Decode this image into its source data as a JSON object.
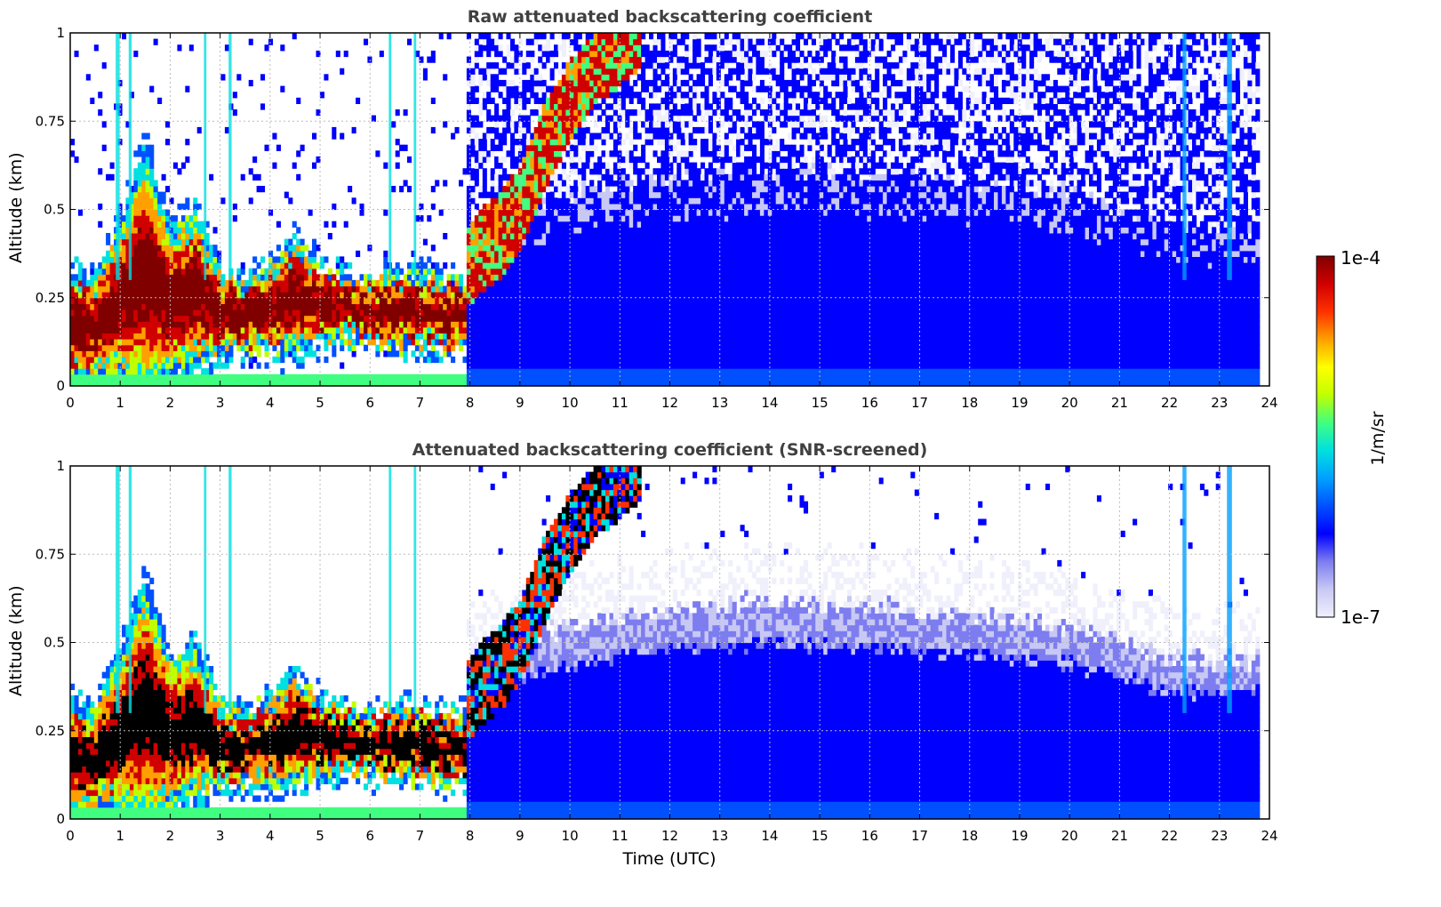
{
  "chart_data": [
    {
      "type": "heatmap",
      "title": "Raw attenuated backscattering coefficient",
      "xlabel": "",
      "ylabel": "Altitude (km)",
      "xlim": [
        0,
        24
      ],
      "ylim": [
        0,
        1
      ],
      "xticks": [
        "0",
        "1",
        "2",
        "3",
        "4",
        "5",
        "6",
        "7",
        "8",
        "9",
        "10",
        "11",
        "12",
        "13",
        "14",
        "15",
        "16",
        "17",
        "18",
        "19",
        "20",
        "21",
        "22",
        "23",
        "24"
      ],
      "yticks": [
        "0",
        "0.25",
        "0.5",
        "0.75",
        "1"
      ],
      "grid": true,
      "data_end_time": 23.8,
      "layers": [
        {
          "kind": "strong_aerosol_core",
          "t": [
            0.0,
            0.5,
            1.0,
            1.5,
            2.0,
            2.5,
            3.0,
            3.5,
            4.0,
            4.5,
            5.0,
            5.5,
            6.0,
            6.5,
            7.0,
            7.5,
            7.8
          ],
          "base": [
            0.05,
            0.06,
            0.07,
            0.05,
            0.08,
            0.1,
            0.11,
            0.12,
            0.12,
            0.13,
            0.14,
            0.15,
            0.14,
            0.13,
            0.13,
            0.12,
            0.12
          ],
          "top": [
            0.3,
            0.28,
            0.42,
            0.6,
            0.4,
            0.45,
            0.3,
            0.28,
            0.32,
            0.38,
            0.32,
            0.3,
            0.28,
            0.3,
            0.3,
            0.28,
            0.28
          ]
        },
        {
          "kind": "rising_layer",
          "t": [
            7.8,
            8.2,
            8.6,
            9.0,
            9.5,
            10.0,
            10.5,
            11.0,
            11.4
          ],
          "base": [
            0.2,
            0.26,
            0.3,
            0.38,
            0.55,
            0.7,
            0.8,
            0.85,
            0.9
          ],
          "top": [
            0.42,
            0.5,
            0.55,
            0.62,
            0.8,
            0.92,
            1.0,
            1.0,
            1.0
          ]
        },
        {
          "kind": "daytime_boundary_layer",
          "t": [
            8,
            10,
            12,
            14,
            16,
            18,
            20,
            22,
            23.8
          ],
          "top": [
            0.45,
            0.55,
            0.6,
            0.62,
            0.6,
            0.58,
            0.55,
            0.45,
            0.45
          ]
        }
      ],
      "vertical_features": [
        {
          "t": 0.95,
          "width": 0.08
        },
        {
          "t": 1.2,
          "width": 0.06
        },
        {
          "t": 2.7,
          "width": 0.05
        },
        {
          "t": 3.2,
          "width": 0.06
        },
        {
          "t": 6.4,
          "width": 0.05
        },
        {
          "t": 6.9,
          "width": 0.05
        },
        {
          "t": 22.3,
          "width": 0.08
        },
        {
          "t": 23.2,
          "width": 0.1
        }
      ],
      "colorbar": {
        "label": "1/m/sr",
        "min": "1e-7",
        "max": "1e-4",
        "colormap": "jet"
      }
    },
    {
      "type": "heatmap",
      "title": "Attenuated backscattering coefficient (SNR-screened)",
      "xlabel": "Time (UTC)",
      "ylabel": "Altitude (km)",
      "xlim": [
        0,
        24
      ],
      "ylim": [
        0,
        1
      ],
      "xticks": [
        "0",
        "1",
        "2",
        "3",
        "4",
        "5",
        "6",
        "7",
        "8",
        "9",
        "10",
        "11",
        "12",
        "13",
        "14",
        "15",
        "16",
        "17",
        "18",
        "19",
        "20",
        "21",
        "22",
        "23",
        "24"
      ],
      "yticks": [
        "0",
        "0.25",
        "0.5",
        "0.75",
        "1"
      ],
      "grid": true,
      "data_end_time": 23.8,
      "saturated_color": "#000000",
      "colorbar": {
        "label": "1/m/sr",
        "min": "1e-7",
        "max": "1e-4",
        "colormap": "jet"
      }
    }
  ],
  "colors": {
    "title": "#404040",
    "jet": [
      "#f0f0fc",
      "#c8c8f5",
      "#7d7df0",
      "#0000ff",
      "#0050ff",
      "#00a0ff",
      "#00e0e0",
      "#40ff80",
      "#c0ff00",
      "#ffff00",
      "#ffa000",
      "#ff3000",
      "#d00000",
      "#800000"
    ]
  }
}
